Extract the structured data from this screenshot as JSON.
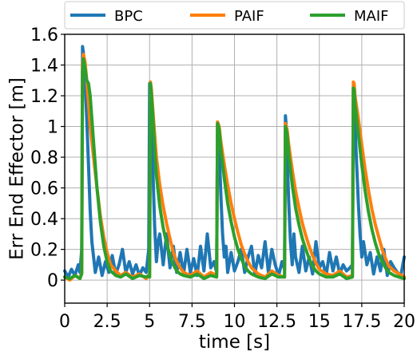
{
  "chart_data": {
    "type": "line",
    "xlabel": "time [s]",
    "ylabel": "Err End Effector [m]",
    "xlim": [
      0,
      20
    ],
    "ylim": [
      -0.15,
      1.6
    ],
    "xticks": [
      0,
      2.5,
      5,
      7.5,
      10,
      12.5,
      15,
      17.5,
      20
    ],
    "xtick_labels": [
      "0",
      "2.5",
      "5",
      "7.5",
      "10",
      "12.5",
      "15",
      "17.5",
      "20"
    ],
    "yticks": [
      0,
      0.2,
      0.4,
      0.6,
      0.8,
      1.0,
      1.2,
      1.4,
      1.6
    ],
    "ytick_labels": [
      "0",
      "0.2",
      "0.4",
      "0.6",
      "0.8",
      "1",
      "1.2",
      "1.4",
      "1.6"
    ],
    "grid": true,
    "legend_placement": "top",
    "series": [
      {
        "name": "BPC",
        "color": "#1f77b4",
        "x": [
          0,
          0.2,
          0.4,
          0.6,
          0.8,
          0.9,
          1.0,
          1.05,
          1.1,
          1.2,
          1.3,
          1.4,
          1.5,
          1.6,
          1.8,
          2.0,
          2.2,
          2.4,
          2.6,
          2.8,
          3.0,
          3.2,
          3.4,
          3.6,
          3.8,
          4.0,
          4.2,
          4.4,
          4.6,
          4.8,
          4.95,
          5.0,
          5.05,
          5.1,
          5.2,
          5.3,
          5.4,
          5.5,
          5.6,
          5.8,
          6.0,
          6.2,
          6.4,
          6.6,
          6.8,
          7.0,
          7.2,
          7.4,
          7.6,
          7.8,
          8.0,
          8.2,
          8.4,
          8.6,
          8.8,
          8.95,
          9.0,
          9.05,
          9.1,
          9.2,
          9.3,
          9.4,
          9.5,
          9.6,
          9.8,
          10.0,
          10.2,
          10.4,
          10.6,
          10.8,
          11.0,
          11.2,
          11.4,
          11.6,
          11.8,
          12.0,
          12.2,
          12.4,
          12.6,
          12.8,
          12.95,
          13.0,
          13.05,
          13.1,
          13.2,
          13.3,
          13.4,
          13.5,
          13.6,
          13.8,
          14.0,
          14.2,
          14.4,
          14.6,
          14.8,
          15.0,
          15.2,
          15.4,
          15.6,
          15.8,
          16.0,
          16.2,
          16.4,
          16.6,
          16.8,
          16.95,
          17.0,
          17.05,
          17.1,
          17.2,
          17.3,
          17.4,
          17.5,
          17.6,
          17.8,
          18.0,
          18.2,
          18.4,
          18.6,
          18.8,
          19.0,
          19.2,
          19.4,
          19.6,
          19.8,
          20.0
        ],
        "y": [
          0.06,
          0.02,
          0.07,
          0.03,
          0.1,
          0.05,
          0.2,
          1.52,
          1.48,
          1.3,
          1.05,
          0.75,
          0.45,
          0.25,
          0.05,
          0.15,
          0.03,
          0.12,
          0.05,
          0.16,
          0.04,
          0.1,
          0.2,
          0.05,
          0.12,
          0.04,
          0.1,
          0.03,
          0.08,
          0.05,
          0.2,
          1.28,
          1.25,
          1.05,
          0.7,
          0.35,
          0.12,
          0.25,
          0.3,
          0.1,
          0.3,
          0.08,
          0.22,
          0.05,
          0.18,
          0.04,
          0.2,
          0.05,
          0.14,
          0.03,
          0.22,
          0.06,
          0.3,
          0.08,
          0.12,
          0.05,
          1.02,
          1.0,
          0.85,
          0.55,
          0.3,
          0.15,
          0.22,
          0.05,
          0.18,
          0.06,
          0.12,
          0.2,
          0.05,
          0.15,
          0.22,
          0.04,
          0.16,
          0.08,
          0.25,
          0.05,
          0.2,
          0.1,
          0.03,
          0.12,
          0.07,
          1.07,
          1.0,
          0.8,
          0.5,
          0.25,
          0.1,
          0.3,
          0.15,
          0.05,
          0.22,
          0.06,
          0.15,
          0.04,
          0.25,
          0.08,
          0.12,
          0.03,
          0.18,
          0.06,
          0.15,
          0.04,
          0.1,
          0.06,
          0.08,
          0.1,
          1.25,
          1.2,
          1.0,
          0.75,
          0.5,
          0.3,
          0.15,
          0.25,
          0.1,
          0.18,
          0.04,
          0.15,
          0.06,
          0.2,
          0.03,
          0.12,
          0.08,
          0.05,
          0.03,
          0.15
        ]
      },
      {
        "name": "PAIF",
        "color": "#ff7f0e",
        "x": [
          0,
          0.3,
          0.6,
          0.9,
          1.0,
          1.05,
          1.1,
          1.2,
          1.3,
          1.4,
          1.5,
          1.7,
          1.9,
          2.1,
          2.3,
          2.5,
          2.7,
          3.0,
          3.3,
          3.6,
          4.0,
          4.4,
          4.8,
          4.95,
          5.0,
          5.05,
          5.1,
          5.2,
          5.3,
          5.4,
          5.6,
          5.8,
          6.0,
          6.2,
          6.4,
          6.6,
          6.8,
          7.0,
          7.4,
          7.8,
          8.2,
          8.6,
          8.95,
          9.0,
          9.1,
          9.2,
          9.4,
          9.6,
          9.8,
          10.0,
          10.2,
          10.4,
          10.6,
          10.8,
          11.0,
          11.4,
          11.8,
          12.2,
          12.6,
          12.95,
          13.0,
          13.1,
          13.2,
          13.4,
          13.6,
          13.8,
          14.0,
          14.2,
          14.4,
          14.6,
          14.8,
          15.0,
          15.4,
          15.8,
          16.2,
          16.6,
          16.95,
          17.0,
          17.05,
          17.1,
          17.3,
          17.5,
          17.7,
          17.9,
          18.1,
          18.3,
          18.5,
          18.7,
          18.9,
          19.1,
          19.4,
          19.7,
          20.0
        ],
        "y": [
          0.02,
          0.0,
          0.03,
          0.01,
          0.05,
          1.4,
          1.47,
          1.42,
          1.3,
          1.15,
          1.0,
          0.8,
          0.6,
          0.42,
          0.28,
          0.18,
          0.1,
          0.06,
          0.03,
          0.05,
          0.02,
          0.04,
          0.01,
          0.03,
          0.02,
          1.29,
          1.25,
          1.1,
          0.95,
          0.8,
          0.62,
          0.48,
          0.37,
          0.27,
          0.18,
          0.12,
          0.08,
          0.05,
          0.03,
          0.06,
          0.02,
          0.05,
          0.03,
          1.03,
          1.0,
          0.9,
          0.75,
          0.62,
          0.5,
          0.4,
          0.31,
          0.23,
          0.17,
          0.12,
          0.08,
          0.04,
          0.02,
          0.06,
          0.03,
          0.02,
          1.02,
          0.98,
          0.88,
          0.72,
          0.58,
          0.47,
          0.37,
          0.29,
          0.22,
          0.16,
          0.11,
          0.07,
          0.04,
          0.03,
          0.06,
          0.02,
          0.03,
          1.29,
          1.28,
          1.2,
          1.05,
          0.88,
          0.72,
          0.58,
          0.46,
          0.36,
          0.28,
          0.2,
          0.14,
          0.09,
          0.06,
          0.04,
          0.02
        ]
      },
      {
        "name": "MAIF",
        "color": "#2ca02c",
        "x": [
          0,
          0.3,
          0.6,
          0.9,
          1.0,
          1.05,
          1.1,
          1.2,
          1.3,
          1.4,
          1.5,
          1.7,
          1.9,
          2.1,
          2.3,
          2.5,
          2.7,
          3.0,
          3.3,
          3.6,
          4.0,
          4.4,
          4.8,
          4.95,
          5.0,
          5.05,
          5.1,
          5.2,
          5.3,
          5.4,
          5.6,
          5.8,
          6.0,
          6.2,
          6.4,
          6.6,
          6.8,
          7.0,
          7.4,
          7.8,
          8.2,
          8.6,
          8.95,
          9.0,
          9.1,
          9.2,
          9.4,
          9.6,
          9.8,
          10.0,
          10.2,
          10.4,
          10.6,
          10.8,
          11.0,
          11.4,
          11.8,
          12.2,
          12.6,
          12.95,
          13.0,
          13.1,
          13.2,
          13.4,
          13.6,
          13.8,
          14.0,
          14.2,
          14.4,
          14.6,
          14.8,
          15.0,
          15.4,
          15.8,
          16.2,
          16.6,
          16.95,
          17.0,
          17.05,
          17.1,
          17.3,
          17.5,
          17.7,
          17.9,
          18.1,
          18.3,
          18.5,
          18.7,
          18.9,
          19.1,
          19.4,
          19.7,
          20.0
        ],
        "y": [
          0.02,
          0.01,
          0.03,
          0.01,
          0.04,
          1.35,
          1.44,
          1.38,
          1.3,
          1.28,
          1.2,
          0.9,
          0.6,
          0.38,
          0.22,
          0.12,
          0.06,
          0.03,
          0.02,
          0.04,
          0.01,
          0.03,
          0.02,
          0.03,
          0.02,
          1.28,
          1.22,
          1.05,
          0.85,
          0.68,
          0.48,
          0.34,
          0.24,
          0.16,
          0.1,
          0.06,
          0.04,
          0.03,
          0.02,
          0.04,
          0.01,
          0.03,
          0.02,
          1.02,
          0.98,
          0.85,
          0.66,
          0.5,
          0.38,
          0.28,
          0.2,
          0.14,
          0.09,
          0.06,
          0.04,
          0.02,
          0.01,
          0.04,
          0.02,
          0.02,
          1.0,
          0.95,
          0.82,
          0.62,
          0.47,
          0.36,
          0.27,
          0.2,
          0.14,
          0.09,
          0.06,
          0.04,
          0.02,
          0.02,
          0.04,
          0.01,
          0.02,
          1.25,
          1.24,
          1.15,
          0.95,
          0.75,
          0.58,
          0.44,
          0.33,
          0.24,
          0.17,
          0.12,
          0.08,
          0.05,
          0.03,
          0.02,
          0.01
        ]
      }
    ]
  }
}
